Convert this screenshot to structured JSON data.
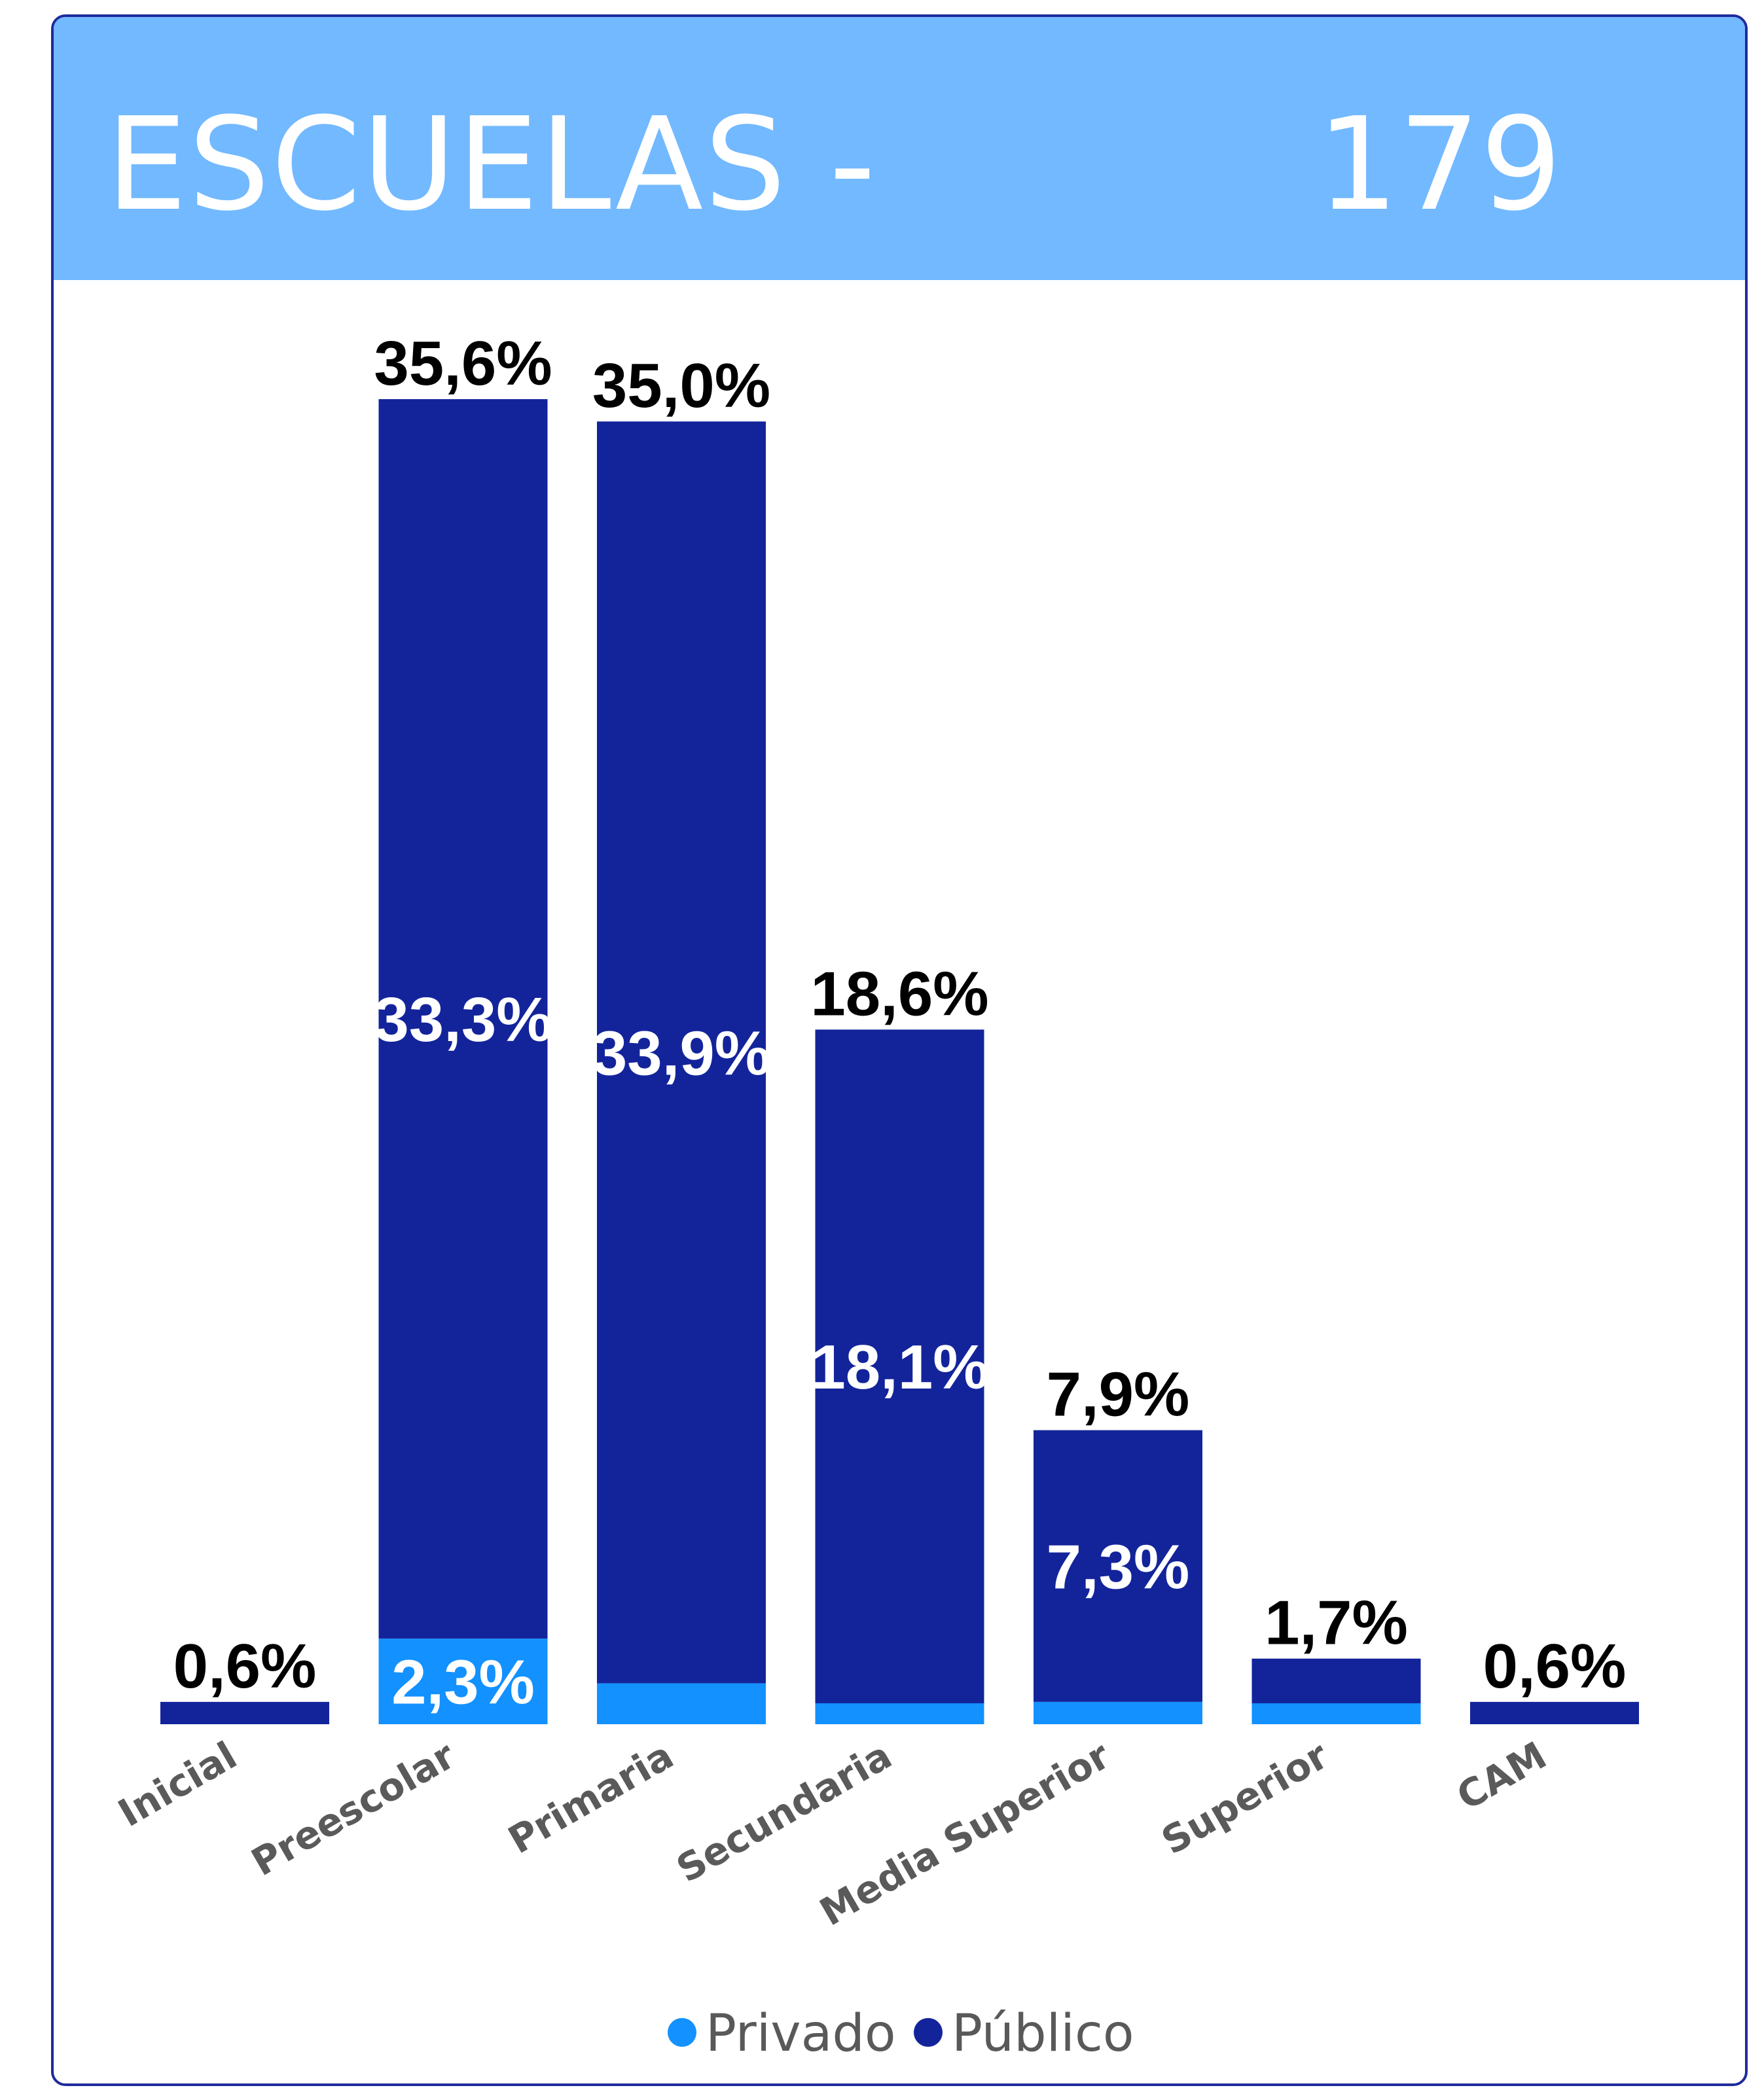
{
  "header": {
    "title": "ESCUELAS -",
    "total": "179",
    "background": "#72b9ff"
  },
  "chart_data": {
    "type": "bar",
    "stacked": true,
    "categories": [
      "Inicial",
      "Preescolar",
      "Primaria",
      "Secundaria",
      "Media Superior",
      "Superior",
      "CAM"
    ],
    "series": [
      {
        "name": "Privado",
        "color": "#1391ff",
        "values": [
          0,
          2.3,
          1.1,
          0.5,
          0.6,
          0.5,
          0
        ],
        "labels": [
          "",
          "2,3%",
          "",
          "",
          "",
          "",
          ""
        ]
      },
      {
        "name": "Público",
        "color": "#13249b",
        "values": [
          0.6,
          33.3,
          33.9,
          18.1,
          7.3,
          1.2,
          0.6
        ],
        "labels": [
          "",
          "33,3%",
          "33,9%",
          "18,1%",
          "7,3%",
          "",
          ""
        ]
      }
    ],
    "totals": [
      0.6,
      35.6,
      35.0,
      18.6,
      7.9,
      1.7,
      0.6
    ],
    "total_labels": [
      "0,6%",
      "35,6%",
      "35,0%",
      "18,6%",
      "7,9%",
      "1,7%",
      "0,6%"
    ],
    "ylim": [
      0,
      35.6
    ],
    "legend": "bottom-center",
    "grid": false
  }
}
